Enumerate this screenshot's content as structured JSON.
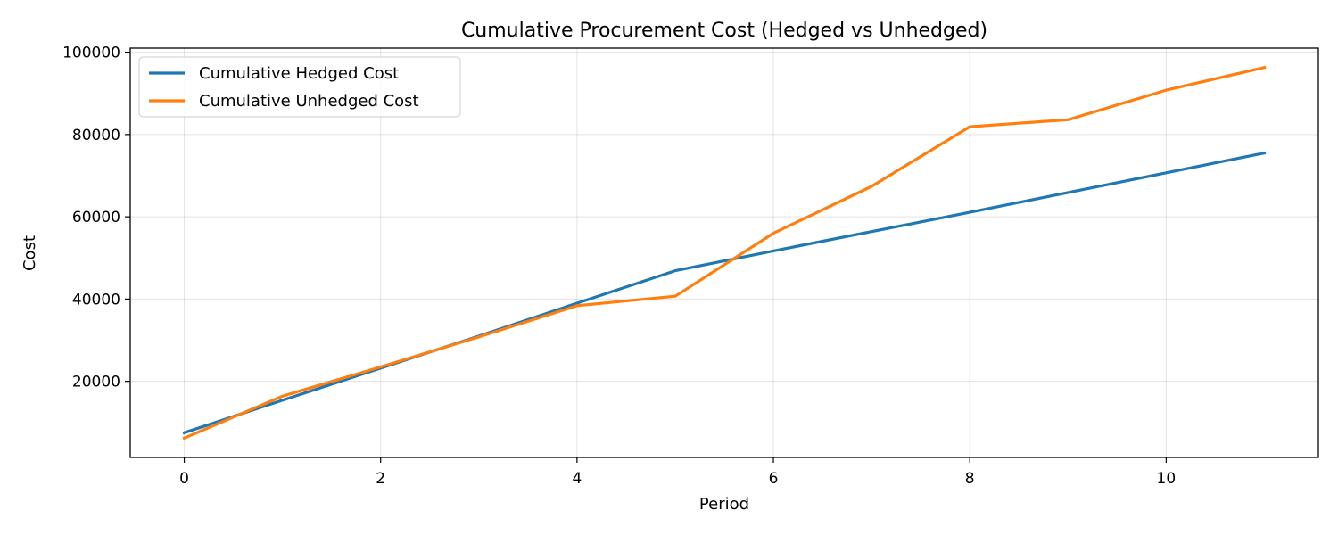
{
  "chart_data": {
    "type": "line",
    "title": "Cumulative Procurement Cost (Hedged vs Unhedged)",
    "xlabel": "Period",
    "ylabel": "Cost",
    "x": [
      0,
      1,
      2,
      3,
      4,
      5,
      6,
      7,
      8,
      9,
      10,
      11
    ],
    "xlim": [
      -0.55,
      11.55
    ],
    "ylim": [
      1500,
      101000
    ],
    "xticks": [
      0,
      2,
      4,
      6,
      8,
      10
    ],
    "yticks": [
      20000,
      40000,
      60000,
      80000,
      100000
    ],
    "grid": true,
    "legend_position": "upper-left",
    "series": [
      {
        "name": "Cumulative Hedged Cost",
        "color": "#1f77b4",
        "values": [
          7500,
          15400,
          23200,
          31000,
          39000,
          46900,
          51700,
          56400,
          61100,
          65900,
          70700,
          75500
        ]
      },
      {
        "name": "Cumulative Unhedged Cost",
        "color": "#ff7f0e",
        "values": [
          6200,
          16400,
          23500,
          30800,
          38400,
          40700,
          56000,
          67400,
          81900,
          83600,
          90800,
          96300
        ]
      }
    ]
  }
}
